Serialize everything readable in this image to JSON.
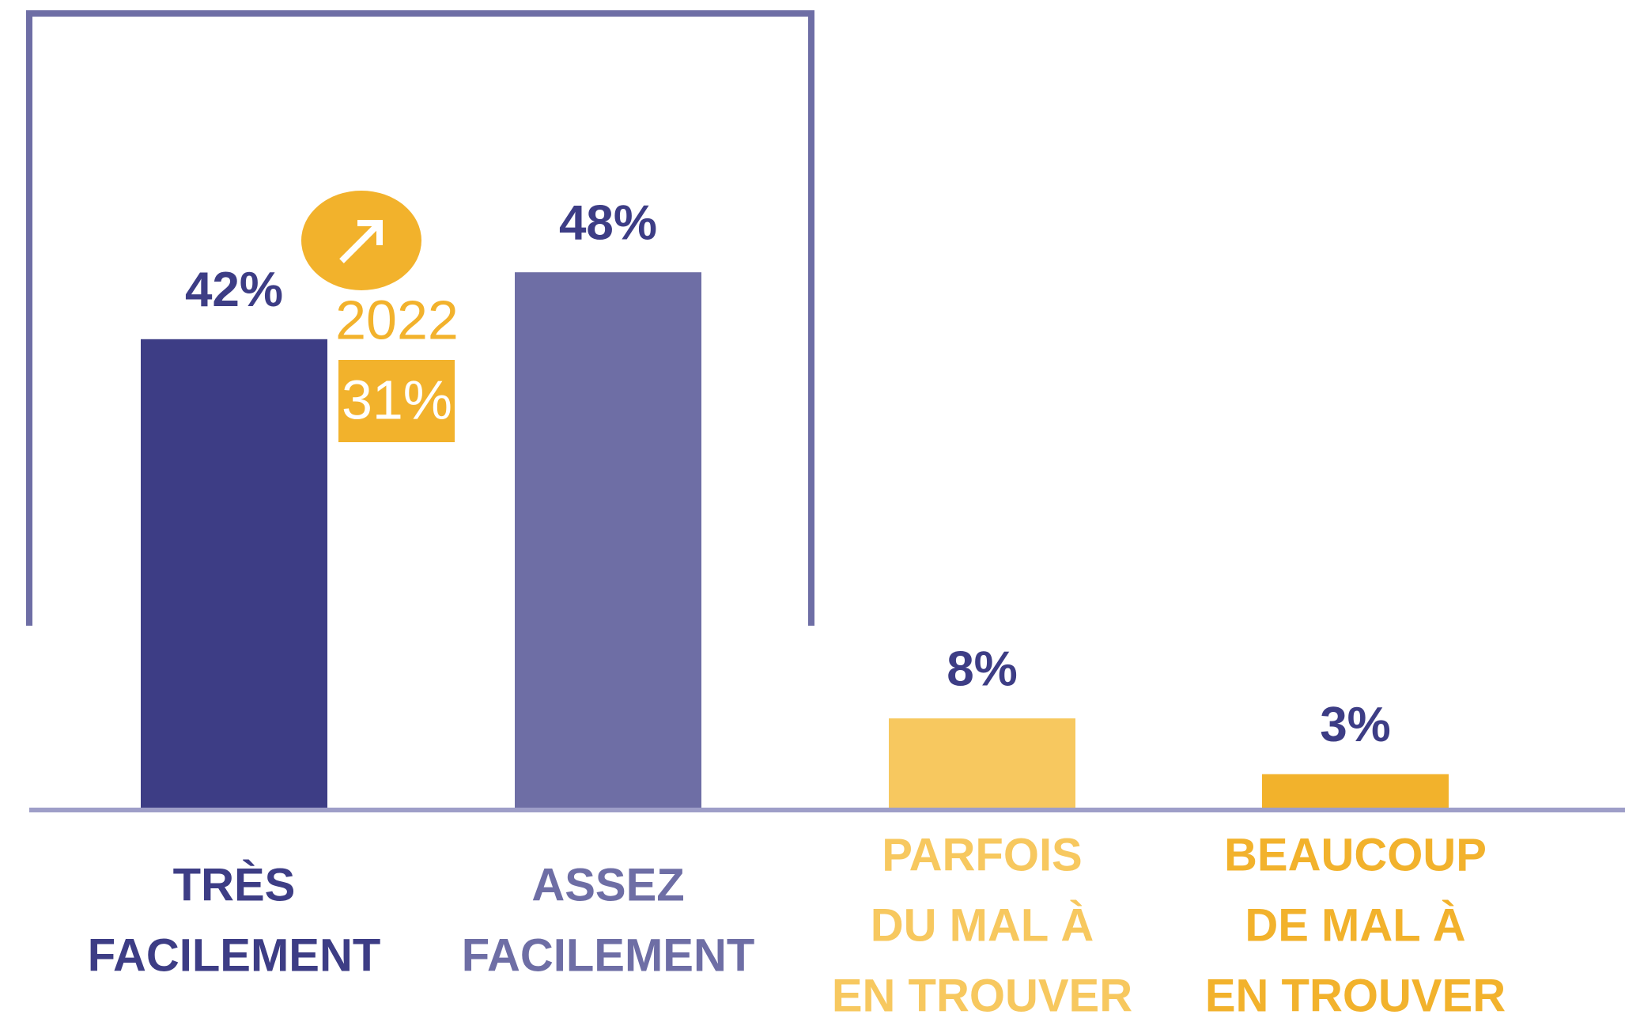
{
  "chart_data": {
    "type": "bar",
    "categories": [
      [
        "TRÈS",
        "FACILEMENT"
      ],
      [
        "ASSEZ",
        "FACILEMENT"
      ],
      [
        "PARFOIS",
        "DU MAL À",
        "EN TROUVER"
      ],
      [
        "BEAUCOUP",
        "DE MAL À",
        "EN TROUVER"
      ]
    ],
    "values": [
      42,
      48,
      8,
      3
    ],
    "value_labels": [
      "42%",
      "48%",
      "8%",
      "3%"
    ],
    "colors": [
      "#3d3d85",
      "#6e6ea5",
      "#f7c85f",
      "#f2b22c"
    ],
    "value_label_color": "#3d3d85",
    "comparison": {
      "year": "2022",
      "value": 31,
      "value_label": "31%",
      "color": "#f2b22c"
    }
  }
}
